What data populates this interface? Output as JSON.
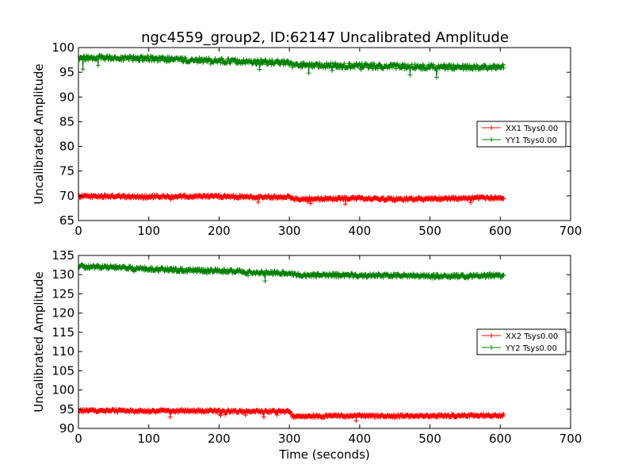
{
  "figure_title": "ngc4559_group2, ID:62147 Uncalibrated Amplitude",
  "colors": {
    "xx": "#ff0000",
    "yy": "#008000"
  },
  "chart_data": [
    {
      "type": "scatter",
      "marker": "plus",
      "title": "ngc4559_group2, ID:62147 Uncalibrated Amplitude",
      "xlabel": "",
      "ylabel": "Uncalibrated Amplitude",
      "xlim": [
        0,
        700
      ],
      "ylim": [
        65,
        100
      ],
      "xticks": [
        "0",
        "100",
        "200",
        "300",
        "400",
        "500",
        "600",
        "700"
      ],
      "yticks": [
        "65",
        "70",
        "75",
        "80",
        "85",
        "90",
        "95",
        "100"
      ],
      "grid": false,
      "legend_position": "center-right",
      "series": [
        {
          "name": "XX1 Tsys0.00",
          "color": "#ff0000",
          "x": [
            0,
            50,
            100,
            150,
            200,
            250,
            300,
            305,
            350,
            400,
            450,
            500,
            550,
            605
          ],
          "y": [
            69.9,
            69.9,
            69.8,
            69.9,
            69.9,
            69.8,
            69.8,
            69.4,
            69.4,
            69.5,
            69.3,
            69.4,
            69.5,
            69.6
          ],
          "spread": 0.3
        },
        {
          "name": "YY1 Tsys0.00",
          "color": "#008000",
          "x": [
            0,
            50,
            100,
            150,
            200,
            250,
            300,
            305,
            350,
            400,
            450,
            500,
            550,
            605
          ],
          "y": [
            97.9,
            97.9,
            97.8,
            97.5,
            97.3,
            97.1,
            96.9,
            96.4,
            96.4,
            96.3,
            96.2,
            96.1,
            96.0,
            96.1
          ],
          "spread": 0.5
        }
      ]
    },
    {
      "type": "scatter",
      "marker": "plus",
      "title": "",
      "xlabel": "Time (seconds)",
      "ylabel": "Uncalibrated Amplitude",
      "xlim": [
        0,
        700
      ],
      "ylim": [
        90,
        135
      ],
      "xticks": [
        "0",
        "100",
        "200",
        "300",
        "400",
        "500",
        "600",
        "700"
      ],
      "yticks": [
        "90",
        "95",
        "100",
        "105",
        "110",
        "115",
        "120",
        "125",
        "130",
        "135"
      ],
      "grid": false,
      "legend_position": "center-right",
      "series": [
        {
          "name": "XX2 Tsys0.00",
          "color": "#ff0000",
          "x": [
            0,
            50,
            100,
            150,
            200,
            250,
            300,
            305,
            350,
            400,
            450,
            500,
            550,
            605
          ],
          "y": [
            94.6,
            94.6,
            94.5,
            94.6,
            94.5,
            94.4,
            94.5,
            93.2,
            93.2,
            93.3,
            93.2,
            93.3,
            93.3,
            93.4
          ],
          "spread": 0.35
        },
        {
          "name": "YY2 Tsys0.00",
          "color": "#008000",
          "x": [
            0,
            50,
            100,
            150,
            200,
            250,
            300,
            305,
            350,
            400,
            450,
            500,
            550,
            605
          ],
          "y": [
            132.1,
            131.9,
            131.5,
            131.2,
            131.0,
            130.6,
            130.4,
            130.0,
            129.9,
            129.8,
            129.8,
            129.6,
            129.6,
            129.8
          ],
          "spread": 0.5
        }
      ]
    }
  ]
}
